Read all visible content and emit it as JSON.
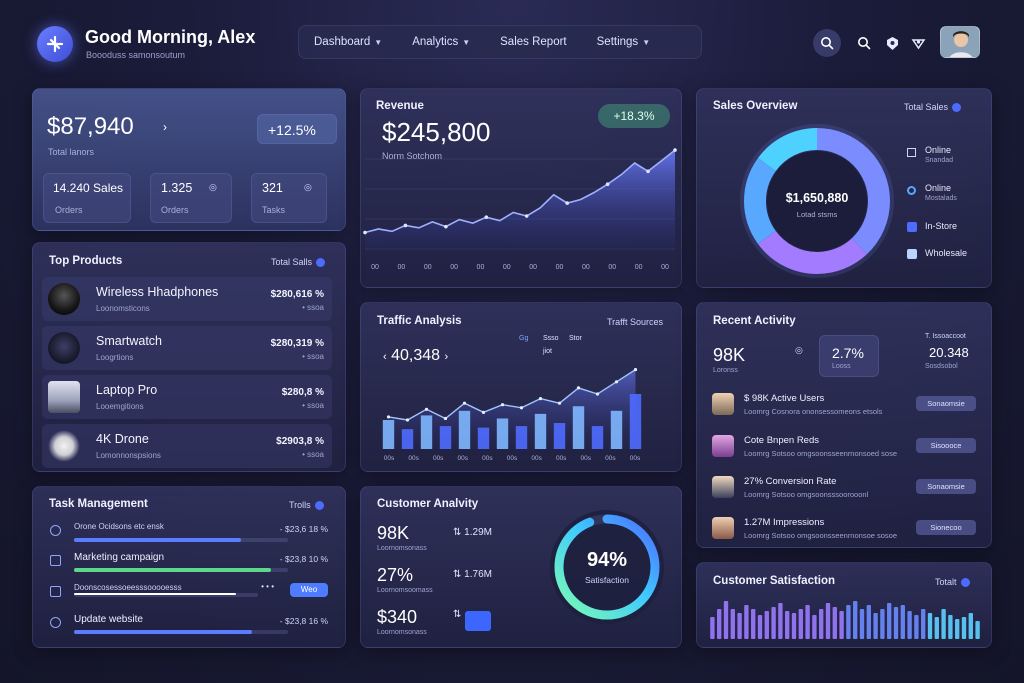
{
  "header": {
    "greeting": "Good Morning, Alex",
    "subtitle": "Boooduss samonsoutum",
    "nav": [
      {
        "label": "Dashboard",
        "caret": true
      },
      {
        "label": "Analytics",
        "caret": true
      },
      {
        "label": "Sales Report",
        "caret": false
      },
      {
        "label": "Settings",
        "caret": true
      }
    ],
    "icons": [
      "search-icon",
      "search-icon",
      "user-icon",
      "palette-icon"
    ]
  },
  "summary": {
    "amount": "$87,940",
    "amount_label": "Total lanors",
    "change": "+12.5%",
    "stats": [
      {
        "value": "14.240 Sales",
        "label": "Orders"
      },
      {
        "value": "1.325",
        "label": "Orders"
      },
      {
        "value": "321",
        "label": "Tasks"
      }
    ]
  },
  "revenue": {
    "title": "Revenue",
    "amount": "$245,800",
    "subtitle": "Norm Sotchom",
    "badge": "+18.3%",
    "chart_data": {
      "type": "area",
      "values": [
        28,
        34,
        30,
        40,
        36,
        46,
        38,
        50,
        44,
        54,
        48,
        62,
        56,
        70,
        92,
        78,
        84,
        96,
        110,
        126,
        146,
        132,
        150,
        168
      ],
      "tick_labels": [
        "00",
        "00",
        "00",
        "00",
        "00",
        "00",
        "00",
        "00",
        "00",
        "00",
        "00",
        "00"
      ],
      "color": "#5b6dff"
    }
  },
  "sales_overview": {
    "title": "Sales Overview",
    "link": "Total Sales",
    "center_value": "$1,650,880",
    "center_label": "Lotad stsms",
    "chart_data": {
      "type": "pie",
      "slices": [
        {
          "label": "Online",
          "value": 38,
          "color": "#7b8cff"
        },
        {
          "label": "Online",
          "value": 27,
          "color": "#a27bff"
        },
        {
          "label": "In-Store",
          "value": 20,
          "color": "#58a8ff"
        },
        {
          "label": "Wholesale",
          "value": 15,
          "color": "#4fd1ff"
        }
      ]
    },
    "legend": [
      {
        "label": "Online",
        "sub": "Snandad"
      },
      {
        "label": "Online",
        "sub": "Mostalads"
      },
      {
        "label": "In-Store",
        "sub": ""
      },
      {
        "label": "Wholesale",
        "sub": ""
      }
    ]
  },
  "top_products": {
    "title": "Top Products",
    "link": "Total Salls",
    "items": [
      {
        "name": "Wireless Hhadphones",
        "sub": "Loonomsticons",
        "price": "$280,616 %",
        "psub": "• ssoa"
      },
      {
        "name": "Smartwatch",
        "sub": "Loogrtions",
        "price": "$280,319 %",
        "psub": "• ssoa"
      },
      {
        "name": "Laptop Pro",
        "sub": "Looemgitions",
        "price": "$280,8 %",
        "psub": "• ssoa"
      },
      {
        "name": "4K Drone",
        "sub": "Lomonnonspsions",
        "price": "$2903,8 %",
        "psub": "• ssoa"
      }
    ]
  },
  "traffic": {
    "title": "Traffic Analysis",
    "link": "Trafft Sources",
    "value": "40,348",
    "legend": [
      "Gg",
      "Ssso",
      "Stor",
      "jiot"
    ],
    "chart_data": {
      "type": "bar",
      "values": [
        38,
        26,
        44,
        30,
        50,
        28,
        40,
        30,
        46,
        34,
        56,
        30,
        50,
        72
      ],
      "line": [
        42,
        38,
        52,
        40,
        60,
        48,
        58,
        54,
        66,
        60,
        80,
        72,
        88,
        104
      ],
      "tick_labels": [
        "00s",
        "00s",
        "00s",
        "00s",
        "00s",
        "00s",
        "00s",
        "00s",
        "00s",
        "00s",
        "00s"
      ]
    }
  },
  "recent_activity": {
    "title": "Recent Activity",
    "stats": [
      {
        "value": "98K",
        "label": "Loronss"
      },
      {
        "value": "2.7%",
        "label": "Looss"
      },
      {
        "value": "20.348",
        "label": "Sosdsobol"
      }
    ],
    "stat_labels": [
      "T. Issoaccoot",
      ""
    ],
    "items": [
      {
        "title": "$ 98K Active Users",
        "sub": "Loomrg Cosnora ononsessomeons etsols",
        "btn": "Sonaomsie"
      },
      {
        "title": "Cote Bnpen Reds",
        "sub": "Loomrg Sotsoo omgsoonsseenrnonsoed sose",
        "btn": "Sisoooce"
      },
      {
        "title": "27% Conversion Rate",
        "sub": "Loomrg Sotsoo omgsoonsssoorooonl",
        "btn": "Sonaomsie"
      },
      {
        "title": "1.27M Impressions",
        "sub": "Loomrg Sotsoo omgsoonsseenrnonsoe sosoe",
        "btn": "Sionecoo"
      }
    ]
  },
  "tasks": {
    "title": "Task Management",
    "link": "Trolls",
    "items": [
      {
        "label": "Orone Ocidsons etc ensk",
        "value": "- $23,6 18 %",
        "progress": 0.78,
        "color": "#5b7cff"
      },
      {
        "label": "Marketing campaign",
        "value": "- $23,8 10 %",
        "progress": 0.92,
        "color": "#5dd88a"
      },
      {
        "label": "Doonscosessoeesssooooesss",
        "value": "• • •",
        "progress": 0.88,
        "color": "#ffffff",
        "badge": "Weo"
      },
      {
        "label": "Update website",
        "value": "- $23,8 16 %",
        "progress": 0.83,
        "color": "#5b7cff"
      }
    ]
  },
  "customer_analytics": {
    "title": "Customer Analvity",
    "rows": [
      {
        "value": "98K",
        "sub": "Loornomsonass",
        "side": "1.29M"
      },
      {
        "value": "27%",
        "sub": "Loornomsoomass",
        "side": "1.76M"
      },
      {
        "value": "$340",
        "sub": "Loornomsonass",
        "side": ""
      }
    ],
    "gauge_value": "94%",
    "gauge_label": "Satisfaction",
    "gauge_fraction": 0.94
  },
  "customer_satisfaction": {
    "title": "Customer Satisfaction",
    "link": "Totalt",
    "chart_data": {
      "type": "bar",
      "values": [
        22,
        30,
        38,
        30,
        26,
        34,
        30,
        24,
        28,
        32,
        36,
        28,
        26,
        30,
        34,
        24,
        30,
        36,
        32,
        28,
        34,
        38,
        30,
        34,
        26,
        30,
        36,
        32,
        34,
        28,
        24,
        30,
        26,
        22,
        30,
        24,
        20,
        22,
        26,
        18
      ]
    }
  }
}
